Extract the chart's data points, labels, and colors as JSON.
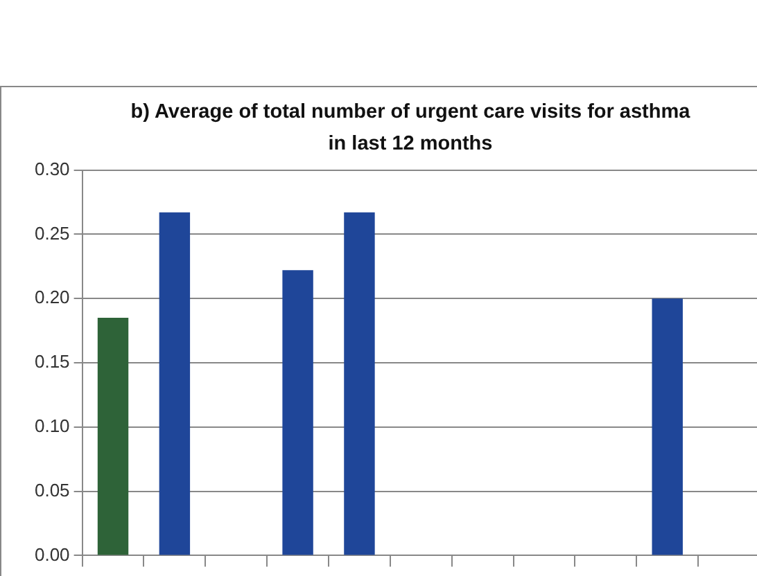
{
  "chart_data": {
    "type": "bar",
    "title": "b) Average of total number of urgent care visits for asthma in last 12 months",
    "categories": [
      null,
      null,
      null,
      null,
      null,
      null,
      null,
      null,
      null,
      null,
      null
    ],
    "values": [
      0.185,
      0.267,
      0,
      0.222,
      0.267,
      0,
      0,
      0,
      0,
      0.2,
      0
    ],
    "colors": [
      "#2e6338",
      "#1f4699",
      "#1f4699",
      "#1f4699",
      "#1f4699",
      "#1f4699",
      "#1f4699",
      "#1f4699",
      "#1f4699",
      "#1f4699",
      "#1f4699"
    ],
    "ylim": [
      0,
      0.3
    ],
    "yticks": [
      {
        "value": 0,
        "label": "0.00"
      },
      {
        "value": 0.05,
        "label": "0.05"
      },
      {
        "value": 0.1,
        "label": "0.10"
      },
      {
        "value": 0.15,
        "label": "0.15"
      },
      {
        "value": 0.2,
        "label": "0.20"
      },
      {
        "value": 0.25,
        "label": "0.25"
      },
      {
        "value": 0.3,
        "label": "0.30"
      }
    ],
    "grid": "y",
    "tick_labels": "y"
  }
}
